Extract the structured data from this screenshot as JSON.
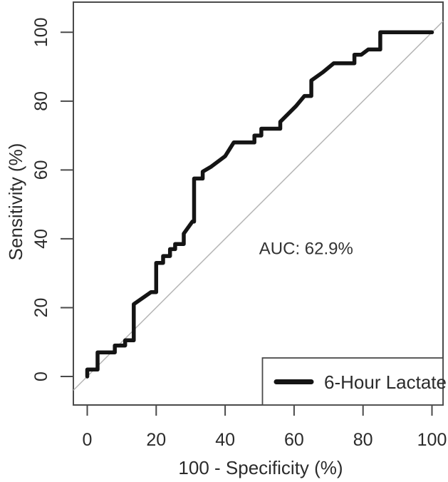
{
  "chart_data": {
    "type": "line",
    "subtype": "roc-curve",
    "title": "",
    "xlabel": "100 - Specificity (%)",
    "ylabel": "Sensitivity (%)",
    "xlim": [
      0,
      100
    ],
    "ylim": [
      0,
      100
    ],
    "x_ticks": [
      0,
      20,
      40,
      60,
      80,
      100
    ],
    "y_ticks": [
      0,
      20,
      40,
      60,
      80,
      100
    ],
    "grid": false,
    "auc_percent": 62.9,
    "annotation": {
      "text": "AUC: 62.9%",
      "x": 63.5,
      "y": 35.5
    },
    "reference_line": {
      "type": "diagonal-chance-line",
      "color": "#b5b5b5"
    },
    "series": [
      {
        "name": "6-Hour Lactate",
        "color": "#141414",
        "points": [
          [
            0,
            0
          ],
          [
            0,
            2
          ],
          [
            3,
            2
          ],
          [
            3,
            7
          ],
          [
            8,
            7
          ],
          [
            8,
            9
          ],
          [
            11,
            9
          ],
          [
            11,
            10.5
          ],
          [
            13.5,
            10.5
          ],
          [
            13.5,
            21
          ],
          [
            18.5,
            24.5
          ],
          [
            20,
            24.5
          ],
          [
            20,
            33
          ],
          [
            22,
            33
          ],
          [
            22,
            35
          ],
          [
            24,
            35
          ],
          [
            24,
            37
          ],
          [
            25.5,
            37
          ],
          [
            25.5,
            38.5
          ],
          [
            28,
            38.5
          ],
          [
            28,
            41.5
          ],
          [
            30.5,
            45
          ],
          [
            31,
            45
          ],
          [
            31,
            57.5
          ],
          [
            33.5,
            57.5
          ],
          [
            33.5,
            59.5
          ],
          [
            36,
            61
          ],
          [
            40,
            64
          ],
          [
            42.5,
            68
          ],
          [
            48.5,
            68
          ],
          [
            48.5,
            70
          ],
          [
            50.5,
            70
          ],
          [
            50.5,
            72
          ],
          [
            56,
            72
          ],
          [
            56,
            74
          ],
          [
            60.5,
            78.5
          ],
          [
            63,
            81.5
          ],
          [
            65,
            81.5
          ],
          [
            65,
            86
          ],
          [
            68.5,
            88.5
          ],
          [
            71.5,
            91
          ],
          [
            77.5,
            91
          ],
          [
            77.5,
            93.5
          ],
          [
            79.5,
            93.5
          ],
          [
            81.5,
            95
          ],
          [
            85,
            95
          ],
          [
            85,
            100
          ],
          [
            100,
            100
          ]
        ]
      }
    ],
    "legend": {
      "position": "bottomright",
      "entries": [
        {
          "label": "6-Hour Lactate",
          "line_color": "#141414"
        }
      ]
    }
  },
  "colors": {
    "background": "#ffffff",
    "frame": "#4a4a4a",
    "text": "#2b2b2b",
    "curve": "#141414",
    "reference_line": "#b5b5b5"
  }
}
